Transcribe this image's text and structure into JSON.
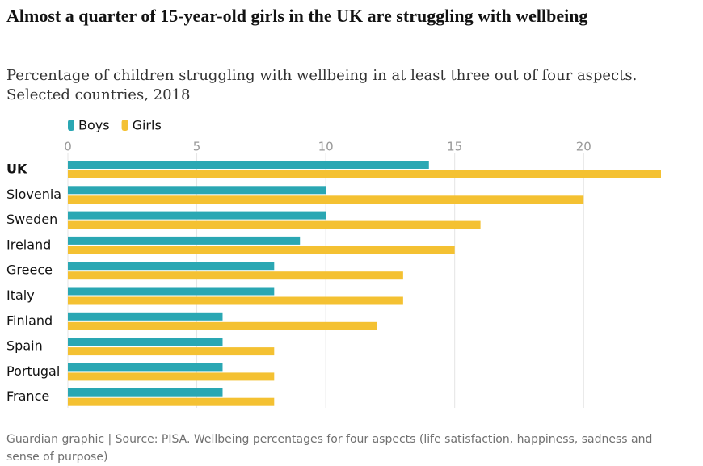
{
  "chart_data": {
    "type": "bar",
    "orientation": "horizontal",
    "title": "Almost a quarter of 15-year-old girls in the UK are struggling with wellbeing",
    "subtitle": "Percentage of children struggling with wellbeing in at least three out of four aspects. Selected countries, 2018",
    "footer": "Guardian graphic | Source: PISA. Wellbeing percentages for four aspects (life satisfaction, happiness, sadness and sense of purpose)",
    "categories": [
      "UK",
      "Slovenia",
      "Sweden",
      "Ireland",
      "Greece",
      "Italy",
      "Finland",
      "Spain",
      "Portugal",
      "France"
    ],
    "series": [
      {
        "name": "Boys",
        "color": "#2aa7b3",
        "values": [
          14,
          10,
          10,
          9,
          8,
          8,
          6,
          6,
          6,
          6
        ]
      },
      {
        "name": "Girls",
        "color": "#f4c132",
        "values": [
          23,
          20,
          16,
          15,
          13,
          13,
          12,
          8,
          8,
          8
        ]
      }
    ],
    "xlim": [
      0,
      23
    ],
    "xticks": [
      0,
      5,
      10,
      15,
      20
    ],
    "grid": true
  }
}
